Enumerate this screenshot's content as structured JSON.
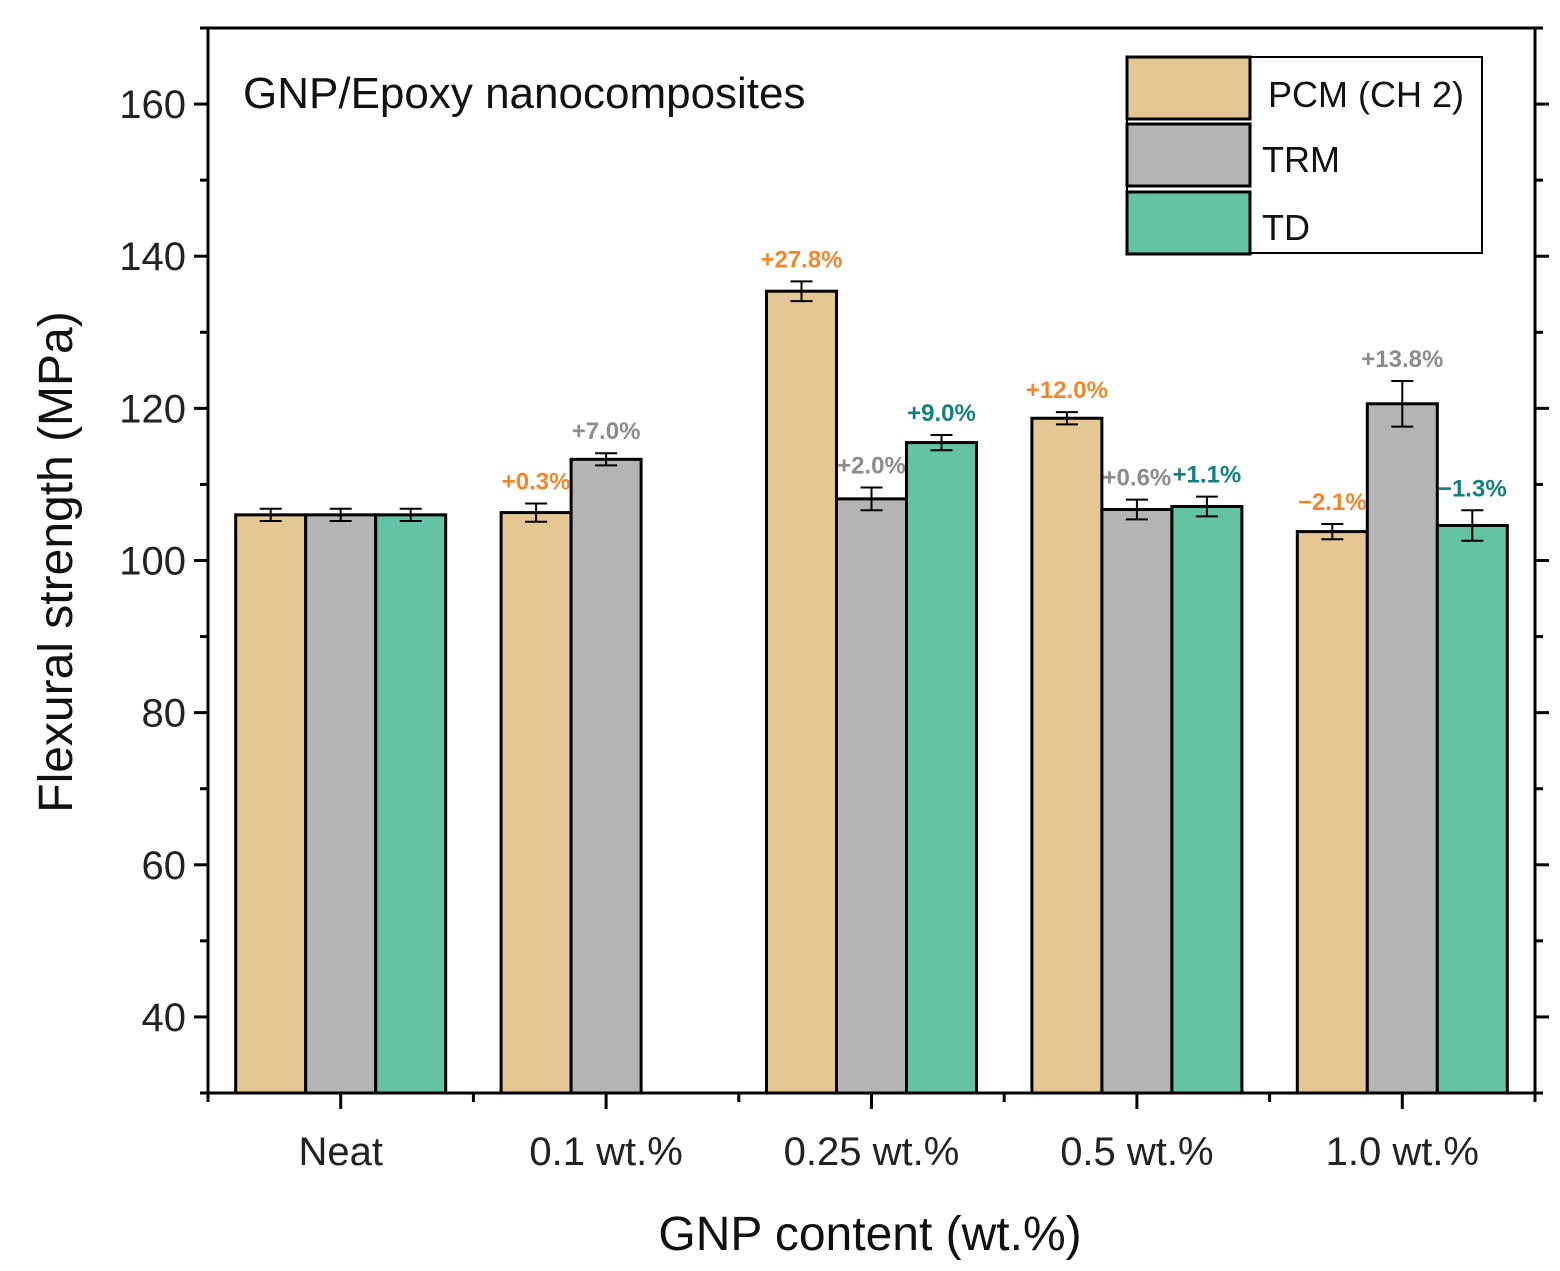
{
  "chart_data": {
    "type": "bar",
    "title": "GNP/Epoxy nanocomposites",
    "xlabel": "GNP content (wt.%)",
    "ylabel": "Flexural strength (MPa)",
    "ylim": [
      30,
      170
    ],
    "yticks": [
      40,
      60,
      80,
      100,
      120,
      140,
      160
    ],
    "categories": [
      "Neat",
      "0.1 wt.%",
      "0.25 wt.%",
      "0.5 wt.%",
      "1.0 wt.%"
    ],
    "legend_position": "top-right",
    "series": [
      {
        "name": "PCM (CH 2)",
        "color": "#e4c793",
        "label_color": "#f0882a",
        "values": [
          106.0,
          106.3,
          135.4,
          118.7,
          103.8
        ],
        "errors": [
          0.8,
          1.2,
          1.3,
          0.8,
          1.0
        ],
        "labels": [
          "",
          "+0.3%",
          "+27.8%",
          "+12.0%",
          "−2.1%"
        ]
      },
      {
        "name": "TRM",
        "color": "#b4b4b4",
        "label_color": "#8c8c8c",
        "values": [
          106.0,
          113.3,
          108.1,
          106.7,
          120.6
        ],
        "errors": [
          0.8,
          0.8,
          1.5,
          1.3,
          3.0
        ],
        "labels": [
          "",
          "+7.0%",
          "+2.0%",
          "+0.6%",
          "+13.8%"
        ]
      },
      {
        "name": "TD",
        "color": "#65c3a5",
        "label_color": "#138080",
        "values": [
          106.0,
          null,
          115.5,
          107.1,
          104.6
        ],
        "errors": [
          0.8,
          null,
          1.0,
          1.3,
          2.0
        ],
        "labels": [
          "",
          "",
          "+9.0%",
          "+1.1%",
          "−1.3%"
        ]
      }
    ]
  }
}
